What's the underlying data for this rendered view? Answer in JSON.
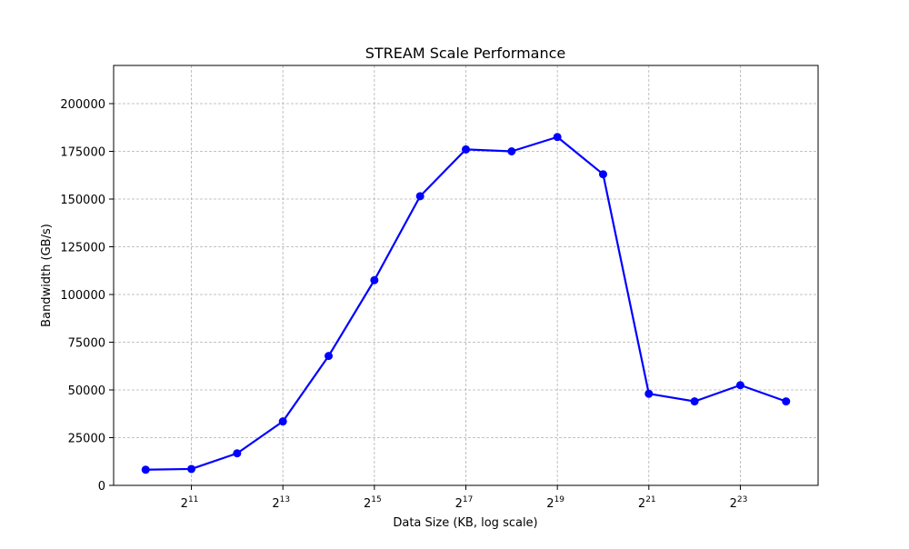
{
  "chart_data": {
    "type": "line",
    "title": "STREAM Scale Performance",
    "xlabel": "Data Size (KB, log scale)",
    "ylabel": "Bandwidth (GB/s)",
    "x_scale": "log2",
    "xlim_exponent": [
      9.3,
      24.7
    ],
    "ylim": [
      0,
      220000
    ],
    "grid": true,
    "x_ticks": [
      {
        "base": "2",
        "exp": "11",
        "value_exp": 11
      },
      {
        "base": "2",
        "exp": "13",
        "value_exp": 13
      },
      {
        "base": "2",
        "exp": "15",
        "value_exp": 15
      },
      {
        "base": "2",
        "exp": "17",
        "value_exp": 17
      },
      {
        "base": "2",
        "exp": "19",
        "value_exp": 19
      },
      {
        "base": "2",
        "exp": "21",
        "value_exp": 21
      },
      {
        "base": "2",
        "exp": "23",
        "value_exp": 23
      }
    ],
    "y_ticks": [
      {
        "label": "0",
        "value": 0
      },
      {
        "label": "25000",
        "value": 25000
      },
      {
        "label": "50000",
        "value": 50000
      },
      {
        "label": "75000",
        "value": 75000
      },
      {
        "label": "100000",
        "value": 100000
      },
      {
        "label": "125000",
        "value": 125000
      },
      {
        "label": "150000",
        "value": 150000
      },
      {
        "label": "175000",
        "value": 175000
      },
      {
        "label": "200000",
        "value": 200000
      }
    ],
    "series": [
      {
        "color": "#0000ff",
        "marker": "circle",
        "x": [
          1024,
          2048,
          4096,
          8192,
          16384,
          32768,
          65536,
          131072,
          262144,
          524288,
          1048576,
          2097152,
          4194304,
          8388608,
          16777216
        ],
        "values": [
          8200,
          8600,
          16800,
          33500,
          67800,
          107500,
          151500,
          176000,
          175000,
          182500,
          163000,
          48000,
          44000,
          52500,
          44000
        ]
      }
    ]
  }
}
